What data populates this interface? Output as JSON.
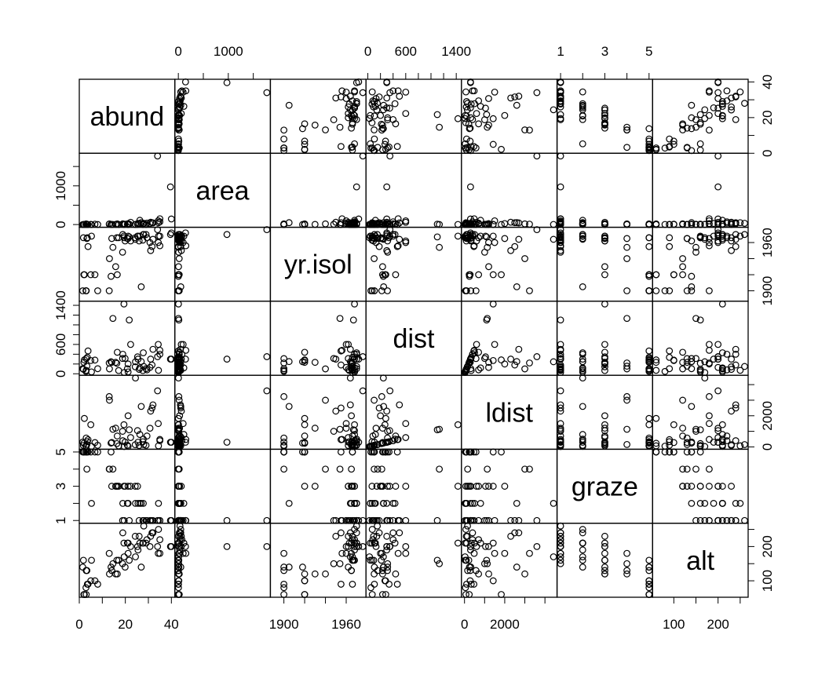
{
  "chart_data": {
    "type": "scatter",
    "point_color": "#000000",
    "variables": [
      {
        "name": "abund",
        "lim": [
          0,
          41.5
        ],
        "ticks": [
          0,
          20,
          40
        ],
        "minor_ticks": [
          10,
          30
        ],
        "values": [
          5.3,
          2.0,
          1.5,
          17.1,
          13.8,
          14.1,
          3.8,
          2.2,
          3.3,
          3.0,
          27.6,
          1.8,
          21.2,
          14.6,
          8.0,
          3.5,
          29.0,
          2.9,
          24.3,
          19.4,
          24.4,
          5.0,
          15.8,
          25.3,
          19.5,
          20.9,
          16.3,
          18.8,
          19.9,
          13.0,
          6.8,
          21.7,
          27.8,
          13.1,
          16.5,
          3.0,
          18.9,
          30.7,
          21.2,
          25.5,
          26.0,
          28.0,
          29.4,
          32.0,
          34.4,
          22.3,
          35.0,
          34.3,
          26.9,
          40.0,
          31.6,
          39.6,
          34.0,
          31.0,
          26.3,
          35.0
        ]
      },
      {
        "name": "area",
        "lim": [
          -70,
          1842
        ],
        "ticks": [
          0,
          1000
        ],
        "minor_ticks": [
          500,
          1500
        ],
        "values": [
          0.1,
          0.5,
          0.5,
          1,
          1,
          1,
          1,
          1,
          1,
          1,
          1,
          1,
          1,
          2,
          2,
          2,
          2,
          3,
          3,
          3,
          3,
          4,
          4,
          4,
          5,
          6,
          6,
          7,
          10,
          10,
          10,
          10,
          17,
          17,
          17,
          18,
          19,
          24,
          25,
          29,
          30,
          33,
          37,
          42,
          48,
          58,
          71,
          96,
          49,
          144,
          48,
          973,
          1771,
          60,
          110,
          150
        ]
      },
      {
        "name": "yr.isol",
        "lim": [
          1887,
          1979
        ],
        "ticks": [
          1900,
          1960
        ],
        "minor_ticks": [
          1920,
          1940
        ],
        "values": [
          1968,
          1920,
          1900,
          1966,
          1918,
          1965,
          1955,
          1920,
          1965,
          1900,
          1963,
          1966,
          1968,
          1954,
          1900,
          1966,
          1970,
          1900,
          1966,
          1968,
          1964,
          1920,
          1930,
          1968,
          1966,
          1965,
          1966,
          1948,
          1962,
          1900,
          1920,
          1967,
          1970,
          1940,
          1920,
          1900,
          1970,
          1960,
          1965,
          1968,
          1962,
          1970,
          1966,
          1964,
          1968,
          1962,
          1968,
          1960,
          1905,
          1972,
          1955,
          1970,
          1976,
          1950,
          1968,
          1956
        ]
      },
      {
        "name": "dist",
        "lim": [
          -30,
          1483
        ],
        "ticks": [
          0,
          600,
          1400
        ],
        "minor_ticks": [
          200,
          400,
          800,
          1000,
          1200
        ],
        "values": [
          39,
          234,
          104,
          66,
          246,
          234,
          467,
          284,
          156,
          311,
          66,
          93,
          39,
          1132,
          104,
          336,
          104,
          48,
          142,
          1427,
          246,
          271,
          234,
          346,
          26,
          104,
          214,
          313,
          313,
          221,
          280,
          1100,
          430,
          100,
          440,
          70,
          400,
          130,
          200,
          300,
          90,
          150,
          80,
          500,
          70,
          600,
          400,
          600,
          250,
          300,
          180,
          300,
          350,
          300,
          120,
          480
        ]
      },
      {
        "name": "ldist",
        "lim": [
          -150,
          4602
        ],
        "ticks": [
          0,
          2000
        ],
        "minor_ticks": [
          1000,
          3000,
          4000
        ],
        "values": [
          39,
          234,
          311,
          66,
          246,
          285,
          467,
          1829,
          156,
          571,
          332,
          93,
          39,
          1132,
          104,
          336,
          104,
          48,
          142,
          1427,
          4426,
          1427,
          1204,
          1046,
          26,
          104,
          214,
          1003,
          313,
          3232,
          280,
          1100,
          500,
          3000,
          700,
          70,
          400,
          1200,
          2000,
          300,
          90,
          150,
          700,
          2700,
          70,
          600,
          400,
          1500,
          2600,
          300,
          2500,
          300,
          3600,
          2300,
          800,
          480
        ]
      },
      {
        "name": "graze",
        "lim": [
          0.84,
          5.16
        ],
        "ticks": [
          1,
          3,
          5
        ],
        "minor_ticks": [
          2,
          4
        ],
        "values": [
          2,
          5,
          5,
          3,
          5,
          3,
          5,
          5,
          4,
          5,
          1,
          5,
          2,
          4,
          5,
          5,
          1,
          5,
          3,
          3,
          2,
          5,
          3,
          3,
          1,
          2,
          3,
          1,
          3,
          4,
          5,
          1,
          2,
          4,
          3,
          5,
          2,
          1,
          3,
          2,
          1,
          1,
          1,
          1,
          2,
          3,
          1,
          1,
          2,
          1,
          1,
          1,
          1,
          1,
          2,
          1
        ]
      },
      {
        "name": "alt",
        "lim": [
          52,
          268
        ],
        "ticks": [
          100,
          200
        ],
        "minor_ticks": [
          150,
          250
        ],
        "values": [
          160,
          60,
          140,
          160,
          140,
          130,
          90,
          60,
          130,
          130,
          210,
          160,
          210,
          150,
          90,
          90,
          210,
          80,
          230,
          210,
          170,
          100,
          120,
          200,
          170,
          210,
          160,
          150,
          140,
          180,
          100,
          160,
          210,
          120,
          120,
          60,
          240,
          200,
          180,
          190,
          230,
          260,
          220,
          240,
          250,
          200,
          220,
          180,
          140,
          200,
          240,
          200,
          200,
          230,
          210,
          180
        ]
      }
    ]
  }
}
